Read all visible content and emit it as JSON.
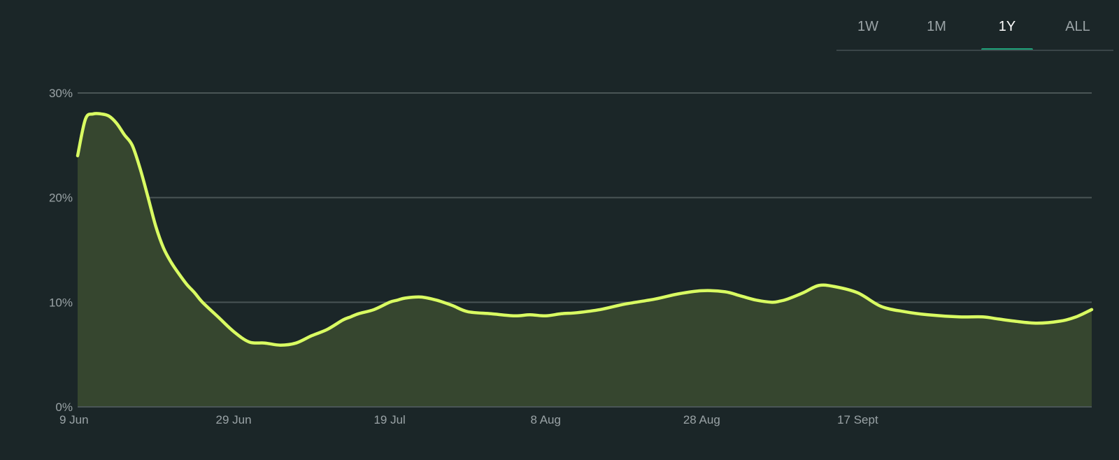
{
  "tabs": [
    {
      "label": "1W",
      "active": false
    },
    {
      "label": "1M",
      "active": false
    },
    {
      "label": "1Y",
      "active": true
    },
    {
      "label": "ALL",
      "active": false
    }
  ],
  "colors": {
    "background": "#1b2628",
    "line": "#d9fb62",
    "fill": "#36462f",
    "grid": "#4a5556",
    "active_tab_indicator": "#1fa37a"
  },
  "chart_data": {
    "type": "area",
    "title": "",
    "xlabel": "",
    "ylabel": "",
    "ylim": [
      0,
      30
    ],
    "y_unit": "%",
    "yticks": [
      0,
      10,
      20,
      30
    ],
    "ytick_labels": [
      "0%",
      "10%",
      "20%",
      "30%"
    ],
    "grid": true,
    "xtick_labels": [
      "9 Jun",
      "29 Jun",
      "19 Jul",
      "8 Aug",
      "28 Aug",
      "17 Sept"
    ],
    "xtick_dates": [
      "06-09",
      "06-29",
      "07-19",
      "08-08",
      "08-28",
      "09-17"
    ],
    "xlim": [
      "06-09",
      "10-17"
    ],
    "series": [
      {
        "x": [
          "06-09",
          "06-10",
          "06-11",
          "06-12",
          "06-13",
          "06-14",
          "06-15",
          "06-16",
          "06-17",
          "06-18",
          "06-19",
          "06-20",
          "06-21",
          "06-22",
          "06-23",
          "06-24",
          "06-25",
          "06-27",
          "06-29",
          "07-01",
          "07-03",
          "07-05",
          "07-07",
          "07-09",
          "07-11",
          "07-13",
          "07-14",
          "07-15",
          "07-17",
          "07-19",
          "07-20",
          "07-21",
          "07-23",
          "07-25",
          "07-27",
          "07-29",
          "08-01",
          "08-04",
          "08-06",
          "08-08",
          "08-10",
          "08-12",
          "08-15",
          "08-18",
          "08-22",
          "08-25",
          "08-28",
          "08-31",
          "09-02",
          "09-04",
          "09-06",
          "09-07",
          "09-08",
          "09-10",
          "09-12",
          "09-14",
          "09-17",
          "09-20",
          "09-23",
          "09-26",
          "09-30",
          "10-03",
          "10-05",
          "10-07",
          "10-10",
          "10-13",
          "10-15",
          "10-17"
        ],
        "values": [
          24.0,
          27.5,
          28.0,
          28.0,
          27.8,
          27.1,
          26.0,
          25.0,
          22.8,
          20.1,
          17.3,
          15.2,
          13.8,
          12.7,
          11.7,
          10.9,
          10.0,
          8.6,
          7.2,
          6.2,
          6.1,
          5.9,
          6.1,
          6.8,
          7.4,
          8.3,
          8.6,
          8.9,
          9.3,
          10.0,
          10.2,
          10.4,
          10.5,
          10.2,
          9.7,
          9.1,
          8.9,
          8.7,
          8.8,
          8.7,
          8.9,
          9.0,
          9.3,
          9.8,
          10.3,
          10.8,
          11.1,
          11.0,
          10.6,
          10.2,
          10.0,
          10.1,
          10.3,
          10.9,
          11.6,
          11.5,
          10.9,
          9.6,
          9.1,
          8.8,
          8.6,
          8.6,
          8.4,
          8.2,
          8.0,
          8.2,
          8.6,
          9.3
        ]
      }
    ]
  }
}
